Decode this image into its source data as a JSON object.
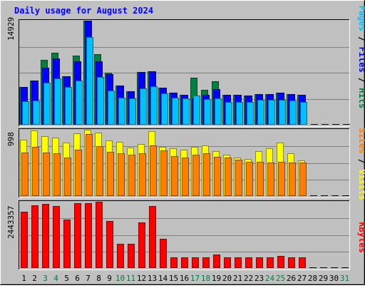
{
  "chart_data": {
    "type": "bar",
    "title": "Daily usage for August 2024",
    "categories": [
      "1",
      "2",
      "3",
      "4",
      "5",
      "6",
      "7",
      "8",
      "9",
      "10",
      "11",
      "12",
      "13",
      "14",
      "15",
      "16",
      "17",
      "18",
      "19",
      "20",
      "21",
      "22",
      "23",
      "24",
      "25",
      "26",
      "27",
      "28",
      "29",
      "30",
      "31"
    ],
    "weekend_days": [
      "3",
      "4",
      "10",
      "11",
      "17",
      "18",
      "24",
      "25",
      "31"
    ],
    "panels": [
      {
        "name": "hits-files-pages",
        "ymax_label": "14929",
        "ylim": [
          0,
          14929
        ],
        "axis_label": {
          "pages": "Pages",
          "files": "Files",
          "hits": "Hits",
          "separator": " / "
        },
        "series": [
          {
            "name": "Hits",
            "color": "#008040",
            "values": [
              5400,
              6300,
              9300,
              10300,
              7000,
              9900,
              14929,
              10100,
              7500,
              5600,
              4800,
              7600,
              7700,
              5300,
              4600,
              4300,
              6700,
              5000,
              6200,
              4300,
              4300,
              4200,
              4400,
              4400,
              4600,
              4400,
              4300,
              0,
              0,
              0,
              0
            ]
          },
          {
            "name": "Files",
            "color": "#0000ff",
            "values": [
              5400,
              6300,
              8200,
              9500,
              7000,
              9100,
              14929,
              9100,
              7300,
              5600,
              4800,
              7600,
              7700,
              5300,
              4600,
              4300,
              3800,
              4300,
              5100,
              4300,
              4300,
              4200,
              4400,
              4400,
              4600,
              4400,
              4300,
              0,
              0,
              0,
              0
            ]
          },
          {
            "name": "Pages",
            "color": "#00c0ff",
            "values": [
              3400,
              3500,
              6000,
              6600,
              5400,
              6300,
              12600,
              6800,
              4900,
              3900,
              3800,
              5200,
              5500,
              4500,
              3900,
              3800,
              4200,
              3700,
              3800,
              3300,
              3300,
              3300,
              3600,
              3600,
              3600,
              3500,
              3300,
              0,
              0,
              0,
              0
            ]
          }
        ]
      },
      {
        "name": "visits-sites",
        "ymax_label": "998",
        "ylim": [
          0,
          998
        ],
        "axis_label": {
          "sites": "Sites",
          "visits": "Visits",
          "separator": " / "
        },
        "series": [
          {
            "name": "Visits",
            "color": "#ffff00",
            "values": [
              850,
              990,
              900,
              880,
              800,
              940,
              998,
              950,
              840,
              820,
              730,
              780,
              980,
              740,
              720,
              700,
              740,
              760,
              680,
              620,
              580,
              560,
              680,
              720,
              800,
              640,
              540,
              0,
              0,
              0,
              0
            ]
          },
          {
            "name": "Sites",
            "color": "#ff8000",
            "values": [
              650,
              740,
              650,
              640,
              580,
              700,
              930,
              750,
              660,
              640,
              620,
              640,
              760,
              690,
              600,
              580,
              620,
              640,
              590,
              580,
              550,
              520,
              520,
              500,
              520,
              500,
              500,
              0,
              0,
              0,
              0
            ]
          }
        ]
      },
      {
        "name": "kbytes",
        "ymax_label": "2443357",
        "ylim": [
          0,
          2443357
        ],
        "axis_label": {
          "kbytes": "KBytes"
        },
        "series": [
          {
            "name": "KBytes",
            "color": "#ff0000",
            "values": [
              2080000,
              2300000,
              2360000,
              2290000,
              1780000,
              2400000,
              2400000,
              2443357,
              1740000,
              900000,
              900000,
              1680000,
              2290000,
              1080000,
              400000,
              400000,
              400000,
              400000,
              500000,
              400000,
              400000,
              400000,
              400000,
              400000,
              450000,
              400000,
              400000,
              0,
              0,
              0,
              0
            ]
          }
        ]
      }
    ]
  },
  "colors": {
    "background": "#c0c0c0",
    "grid": "#808080",
    "title": "#0000ff",
    "day_label": "#000000",
    "weekend_label": "#008040"
  }
}
